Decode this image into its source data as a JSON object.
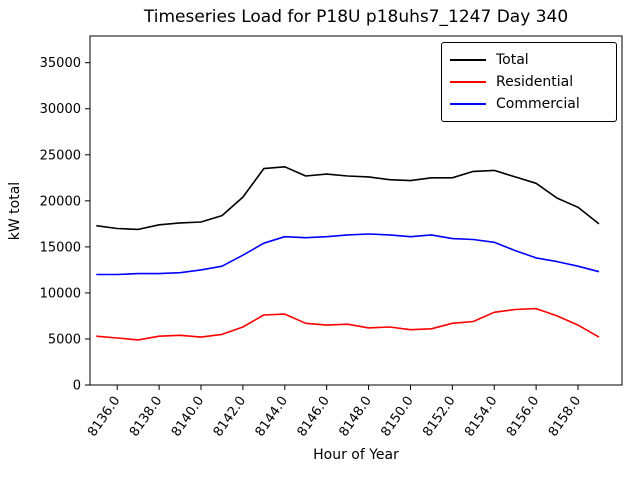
{
  "figure": {
    "title": "Timeseries Load for P18U p18uhs7_1247  Day 340",
    "xlabel": "Hour of Year",
    "ylabel": "kW total"
  },
  "chart_data": {
    "type": "line",
    "title": "Timeseries Load for P18U p18uhs7_1247  Day 340",
    "xlabel": "Hour of Year",
    "ylabel": "kW total",
    "grid": false,
    "legend_position": "upper right",
    "xlim": [
      8134.7,
      8160.1
    ],
    "ylim": [
      0,
      37900
    ],
    "yticks": [
      0,
      5000,
      10000,
      15000,
      20000,
      25000,
      30000,
      35000
    ],
    "xticks": [
      8136,
      8138,
      8140,
      8142,
      8144,
      8146,
      8148,
      8150,
      8152,
      8154,
      8156,
      8158
    ],
    "xtick_labels": [
      "8136.0",
      "8138.0",
      "8140.0",
      "8142.0",
      "8144.0",
      "8146.0",
      "8148.0",
      "8150.0",
      "8152.0",
      "8154.0",
      "8156.0",
      "8158.0"
    ],
    "xtick_rotation": 55,
    "x": [
      8135,
      8136,
      8137,
      8138,
      8139,
      8140,
      8141,
      8142,
      8143,
      8144,
      8145,
      8146,
      8147,
      8148,
      8149,
      8150,
      8151,
      8152,
      8153,
      8154,
      8155,
      8156,
      8157,
      8158,
      8159
    ],
    "series": [
      {
        "name": "Total",
        "color": "#000000",
        "values": [
          17300,
          17000,
          16900,
          17400,
          17600,
          17700,
          18400,
          20400,
          23500,
          23700,
          22700,
          22900,
          22700,
          22600,
          22300,
          22200,
          22500,
          22500,
          23200,
          23300,
          22600,
          21900,
          20300,
          19300,
          17500
        ]
      },
      {
        "name": "Residential",
        "color": "#ff0000",
        "values": [
          5300,
          5100,
          4900,
          5300,
          5400,
          5200,
          5500,
          6300,
          7600,
          7700,
          6700,
          6500,
          6600,
          6200,
          6300,
          6000,
          6100,
          6700,
          6900,
          7900,
          8200,
          8300,
          7500,
          6500,
          5200
        ]
      },
      {
        "name": "Commercial",
        "color": "#0000ff",
        "values": [
          12000,
          12000,
          12100,
          12100,
          12200,
          12500,
          12900,
          14100,
          15400,
          16100,
          16000,
          16100,
          16300,
          16400,
          16300,
          16100,
          16300,
          15900,
          15800,
          15500,
          14600,
          13800,
          13400,
          12900,
          12300
        ]
      }
    ]
  }
}
